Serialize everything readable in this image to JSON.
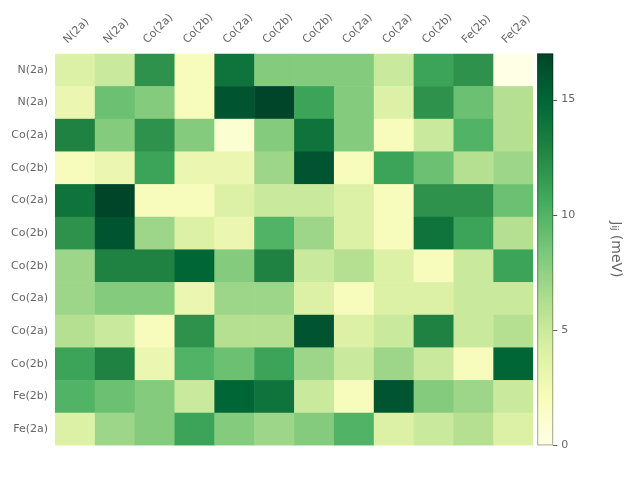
{
  "chart_data": {
    "type": "heatmap",
    "x_categories": [
      "N(2a)",
      "N(2a)",
      "Co(2a)",
      "Co(2b)",
      "Co(2a)",
      "Co(2b)",
      "Co(2b)",
      "Co(2a)",
      "Co(2a)",
      "Co(2b)",
      "Fe(2b)",
      "Fe(2a)"
    ],
    "y_categories": [
      "N(2a)",
      "N(2a)",
      "Co(2a)",
      "Co(2b)",
      "Co(2a)",
      "Co(2b)",
      "Co(2b)",
      "Co(2a)",
      "Co(2a)",
      "Co(2b)",
      "Fe(2b)",
      "Fe(2a)"
    ],
    "values": [
      [
        4,
        5,
        12,
        2,
        14,
        8,
        8,
        8,
        5,
        11,
        12,
        0
      ],
      [
        3,
        9,
        8,
        2,
        16,
        17,
        11,
        8,
        4,
        12,
        9,
        6
      ],
      [
        13,
        8,
        12,
        8,
        1,
        8,
        14,
        8,
        2,
        5,
        10,
        6
      ],
      [
        2,
        3,
        11,
        3,
        3,
        7,
        16,
        2,
        11,
        9,
        6,
        7
      ],
      [
        14,
        17,
        2,
        2,
        4,
        5,
        5,
        4,
        2,
        12,
        12,
        9
      ],
      [
        12,
        16,
        7,
        4,
        3,
        10,
        7,
        4,
        2,
        14,
        11,
        6
      ],
      [
        7,
        13,
        13,
        15,
        8,
        13,
        5,
        6,
        4,
        2,
        5,
        11
      ],
      [
        7,
        8,
        8,
        3,
        7,
        7,
        4,
        2,
        4,
        4,
        5,
        5
      ],
      [
        6,
        5,
        2,
        12,
        6,
        6,
        16,
        4,
        5,
        13,
        5,
        6
      ],
      [
        11,
        13,
        3,
        10,
        9,
        11,
        7,
        5,
        7,
        5,
        2,
        15
      ],
      [
        10,
        9,
        8,
        5,
        15,
        14,
        5,
        2,
        16,
        8,
        7,
        5
      ],
      [
        4,
        7,
        8,
        11,
        8,
        7,
        8,
        10,
        4,
        5,
        6,
        4
      ]
    ],
    "color": "YlGn",
    "colorbar_label": "Jᵢⱼ (meV)",
    "colorbar_lim": [
      0,
      17
    ],
    "colorbar_ticks": [
      0,
      5,
      10,
      15
    ],
    "grid": false
  }
}
